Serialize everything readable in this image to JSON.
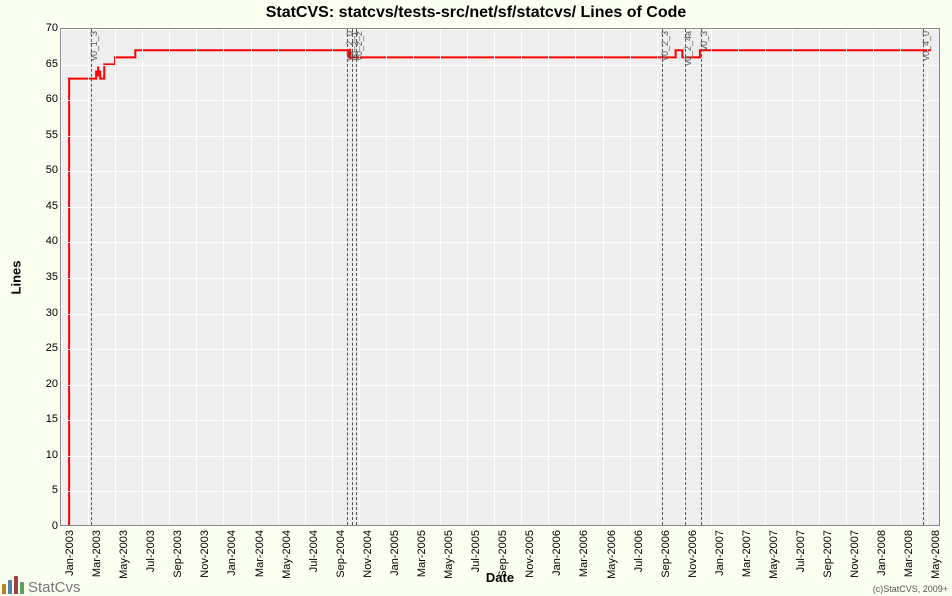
{
  "title": "StatCVS: statcvs/tests-src/net/sf/statcvs/ Lines of Code",
  "xlabel": "Date",
  "ylabel": "Lines",
  "credit": "(c)StatCVS, 2009+",
  "logo_text": "StatCvs",
  "background_color": "#fbffef",
  "plot_bg_color": "#eeeeee",
  "grid_color": "#ffffff",
  "axis_color": "#888888",
  "series_color": "#ff0000",
  "series_width": 2,
  "title_fontsize": 16,
  "label_fontsize": 13,
  "tick_fontsize": 11,
  "type": "step-line",
  "ylim": [
    0,
    70
  ],
  "ytick_step": 5,
  "yticks": [
    0,
    5,
    10,
    15,
    20,
    25,
    30,
    35,
    40,
    45,
    50,
    55,
    60,
    65,
    70
  ],
  "x_range_months": [
    "2003-01",
    "2008-06"
  ],
  "x_tick_interval_months": 2,
  "xticks": [
    "Jan-2003",
    "Mar-2003",
    "May-2003",
    "Jul-2003",
    "Sep-2003",
    "Nov-2003",
    "Jan-2004",
    "Mar-2004",
    "May-2004",
    "Jul-2004",
    "Sep-2004",
    "Nov-2004",
    "Jan-2005",
    "Mar-2005",
    "May-2005",
    "Jul-2005",
    "Sep-2005",
    "Nov-2005",
    "Jan-2006",
    "Mar-2006",
    "May-2006",
    "Jul-2006",
    "Sep-2006",
    "Nov-2006",
    "Jan-2007",
    "Mar-2007",
    "May-2007",
    "Jul-2007",
    "Sep-2007",
    "Nov-2007",
    "Jan-2008",
    "Mar-2008",
    "May-2008"
  ],
  "xtick_months": [
    0,
    2,
    4,
    6,
    8,
    10,
    12,
    14,
    16,
    18,
    20,
    22,
    24,
    26,
    28,
    30,
    32,
    34,
    36,
    38,
    40,
    42,
    44,
    46,
    48,
    50,
    52,
    54,
    56,
    58,
    60,
    62,
    64
  ],
  "annotations": [
    {
      "label": "v0_1_3",
      "month_pos": 2.2
    },
    {
      "label": "v0_2_0",
      "month_pos": 21.1
    },
    {
      "label": "v0_2_1",
      "month_pos": 21.5
    },
    {
      "label": "v0_2_2",
      "month_pos": 21.8
    },
    {
      "label": "v0_2_3",
      "month_pos": 44.4
    },
    {
      "label": "v0_2_4a",
      "month_pos": 46.1
    },
    {
      "label": "v0_3",
      "month_pos": 47.3
    },
    {
      "label": "v0_4_0",
      "month_pos": 63.7
    }
  ],
  "series": [
    {
      "month_pos": 0.6,
      "value": 0
    },
    {
      "month_pos": 0.6,
      "value": 63
    },
    {
      "month_pos": 2.6,
      "value": 63
    },
    {
      "month_pos": 2.6,
      "value": 64
    },
    {
      "month_pos": 2.9,
      "value": 64
    },
    {
      "month_pos": 2.9,
      "value": 63
    },
    {
      "month_pos": 3.2,
      "value": 63
    },
    {
      "month_pos": 3.2,
      "value": 65
    },
    {
      "month_pos": 4.0,
      "value": 65
    },
    {
      "month_pos": 4.0,
      "value": 66
    },
    {
      "month_pos": 5.5,
      "value": 66
    },
    {
      "month_pos": 5.5,
      "value": 67
    },
    {
      "month_pos": 21.3,
      "value": 67
    },
    {
      "month_pos": 21.3,
      "value": 66
    },
    {
      "month_pos": 45.5,
      "value": 66
    },
    {
      "month_pos": 45.5,
      "value": 67
    },
    {
      "month_pos": 46.0,
      "value": 67
    },
    {
      "month_pos": 46.0,
      "value": 66
    },
    {
      "month_pos": 47.3,
      "value": 66
    },
    {
      "month_pos": 47.3,
      "value": 67
    },
    {
      "month_pos": 64.4,
      "value": 67
    }
  ],
  "markers": [
    {
      "month_pos": 2.75,
      "value": 64,
      "h": 1
    },
    {
      "month_pos": 21.4,
      "value": 66.5,
      "h": 1
    }
  ],
  "logo_bars": [
    {
      "color": "#c08020",
      "h": 10
    },
    {
      "color": "#5080b0",
      "h": 14
    },
    {
      "color": "#a04040",
      "h": 18
    },
    {
      "color": "#60a060",
      "h": 12
    }
  ]
}
